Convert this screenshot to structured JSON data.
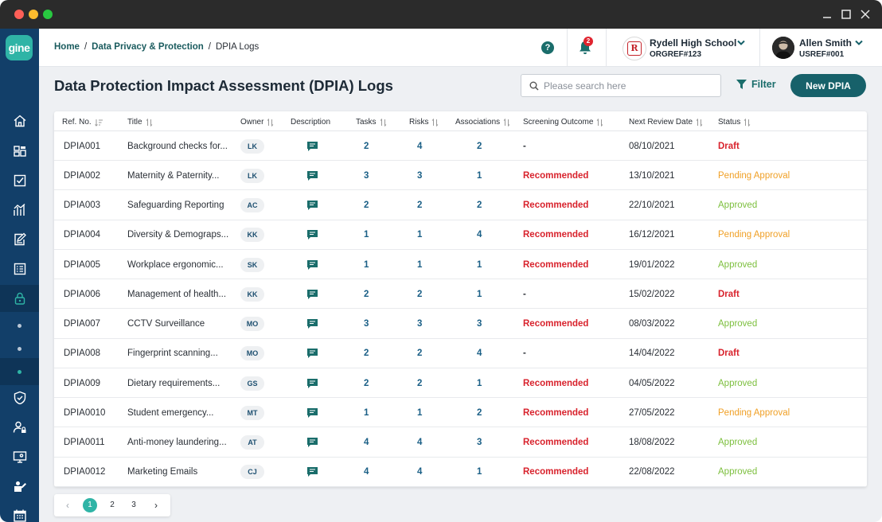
{
  "app": {
    "logo_text": "gine"
  },
  "breadcrumb": {
    "home": "Home",
    "section": "Data Privacy & Protection",
    "current": "DPIA Logs",
    "separator": "/"
  },
  "notifications": {
    "count": "2"
  },
  "org": {
    "name": "Rydell High School",
    "ref": "ORGREF#123",
    "logo_letter": "R"
  },
  "user": {
    "name": "Allen Smith",
    "ref": "USREF#001"
  },
  "page": {
    "title": "Data Protection Impact Assessment (DPIA) Logs"
  },
  "search": {
    "placeholder": "Please search here"
  },
  "toolbar": {
    "filter_label": "Filter",
    "new_label": "New DPIA"
  },
  "table": {
    "columns": [
      "Ref. No.",
      "Title",
      "Owner",
      "Description",
      "Tasks",
      "Risks",
      "Associations",
      "Screening Outcome",
      "Next Review Date",
      "Status"
    ],
    "rows": [
      {
        "ref": "DPIA001",
        "title": "Background checks for...",
        "owner": "LK",
        "tasks": "2",
        "risks": "4",
        "assoc": "2",
        "outcome": "-",
        "date": "08/10/2021",
        "status": "Draft"
      },
      {
        "ref": "DPIA002",
        "title": "Maternity & Paternity...",
        "owner": "LK",
        "tasks": "3",
        "risks": "3",
        "assoc": "1",
        "outcome": "Recommended",
        "date": "13/10/2021",
        "status": "Pending Approval"
      },
      {
        "ref": "DPIA003",
        "title": "Safeguarding Reporting",
        "owner": "AC",
        "tasks": "2",
        "risks": "2",
        "assoc": "2",
        "outcome": "Recommended",
        "date": "22/10/2021",
        "status": "Approved"
      },
      {
        "ref": "DPIA004",
        "title": "Diversity & Demograps...",
        "owner": "KK",
        "tasks": "1",
        "risks": "1",
        "assoc": "4",
        "outcome": "Recommended",
        "date": "16/12/2021",
        "status": "Pending Approval"
      },
      {
        "ref": "DPIA005",
        "title": "Workplace ergonomic...",
        "owner": "SK",
        "tasks": "1",
        "risks": "1",
        "assoc": "1",
        "outcome": "Recommended",
        "date": "19/01/2022",
        "status": "Approved"
      },
      {
        "ref": "DPIA006",
        "title": "Management of health...",
        "owner": "KK",
        "tasks": "2",
        "risks": "2",
        "assoc": "1",
        "outcome": "-",
        "date": "15/02/2022",
        "status": "Draft"
      },
      {
        "ref": "DPIA007",
        "title": "CCTV Surveillance",
        "owner": "MO",
        "tasks": "3",
        "risks": "3",
        "assoc": "3",
        "outcome": "Recommended",
        "date": "08/03/2022",
        "status": "Approved"
      },
      {
        "ref": "DPIA008",
        "title": "Fingerprint scanning...",
        "owner": "MO",
        "tasks": "2",
        "risks": "2",
        "assoc": "4",
        "outcome": "-",
        "date": "14/04/2022",
        "status": "Draft"
      },
      {
        "ref": "DPIA009",
        "title": "Dietary requirements...",
        "owner": "GS",
        "tasks": "2",
        "risks": "2",
        "assoc": "1",
        "outcome": "Recommended",
        "date": "04/05/2022",
        "status": "Approved"
      },
      {
        "ref": "DPIA0010",
        "title": "Student emergency...",
        "owner": "MT",
        "tasks": "1",
        "risks": "1",
        "assoc": "2",
        "outcome": "Recommended",
        "date": "27/05/2022",
        "status": "Pending Approval"
      },
      {
        "ref": "DPIA0011",
        "title": "Anti-money laundering...",
        "owner": "AT",
        "tasks": "4",
        "risks": "4",
        "assoc": "3",
        "outcome": "Recommended",
        "date": "18/08/2022",
        "status": "Approved"
      },
      {
        "ref": "DPIA0012",
        "title": "Marketing Emails",
        "owner": "CJ",
        "tasks": "4",
        "risks": "4",
        "assoc": "1",
        "outcome": "Recommended",
        "date": "22/08/2022",
        "status": "Approved"
      }
    ]
  },
  "pagination": {
    "pages": [
      "1",
      "2",
      "3"
    ],
    "current": "1"
  },
  "colors": {
    "accent": "#2fb4a6",
    "sidebar": "#123f69",
    "primary_button": "#17616a",
    "draft": "#d8222c",
    "pending": "#f0a026",
    "approved": "#7cbf3d"
  },
  "icons": {
    "sidebar": [
      "home-icon",
      "dashboard-icon",
      "checklist-icon",
      "analytics-icon",
      "edit-document-icon",
      "register-icon",
      "lock-icon",
      "dot",
      "dot",
      "dot",
      "shield-icon",
      "user-lock-icon",
      "monitor-settings-icon",
      "user-edit-icon",
      "calendar-icon"
    ]
  }
}
